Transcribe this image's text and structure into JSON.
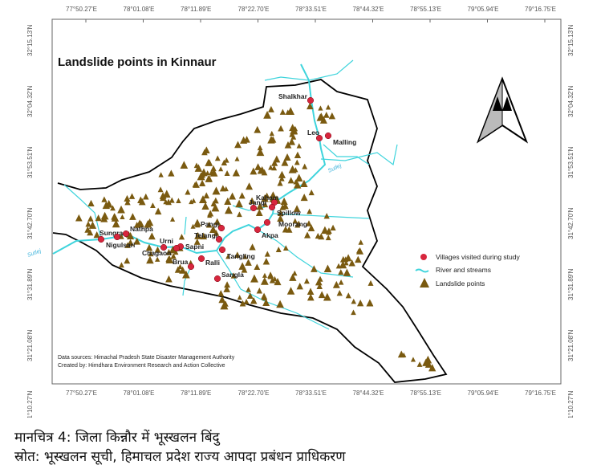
{
  "map": {
    "title": "Landslide points in Kinnaur",
    "lon_ticks": [
      "77°50.27'E",
      "78°01.08'E",
      "78°11.89'E",
      "78°22.70'E",
      "78°33.51'E",
      "78°44.32'E",
      "78°55.13'E",
      "79°05.94'E",
      "79°16.75'E"
    ],
    "lat_ticks": [
      "32°15.13'N",
      "32°04.32'N",
      "31°53.51'N",
      "31°42.70'N",
      "31°31.89'N",
      "31°21.08'N",
      "31°10.27'N"
    ],
    "villages": [
      "Shalkhar",
      "Leo",
      "Malling",
      "Kaham",
      "Spillow",
      "Jangi",
      "Moorang",
      "Akpa",
      "Pangi",
      "Telangi",
      "Tangling",
      "Ralli",
      "Brua",
      "Sangla",
      "Urni",
      "Sapni",
      "Chagaon",
      "Sungra",
      "Nigulsari",
      "Nathpa"
    ],
    "river_label": "Sutlej",
    "legend": {
      "villages": "Villages visited during study",
      "rivers": "River and streams",
      "landslides": "Landslide points"
    },
    "source_line": "Data sources: Himachal Pradesh State Disaster Management Authority",
    "credit_line": "Created by: Himdhara Environment Research and Action Collective",
    "colors": {
      "village": "#d7263d",
      "river": "#3fd4dc",
      "landslide": "#7a5a10",
      "boundary": "#000000"
    }
  },
  "caption": {
    "line1": "मानचित्र 4: जिला किन्नौर में भूस्खलन बिंदु",
    "line2": "स्रोत: भूस्खलन सूची, हिमाचल प्रदेश राज्य आपदा प्रबंधन प्राधिकरण"
  }
}
